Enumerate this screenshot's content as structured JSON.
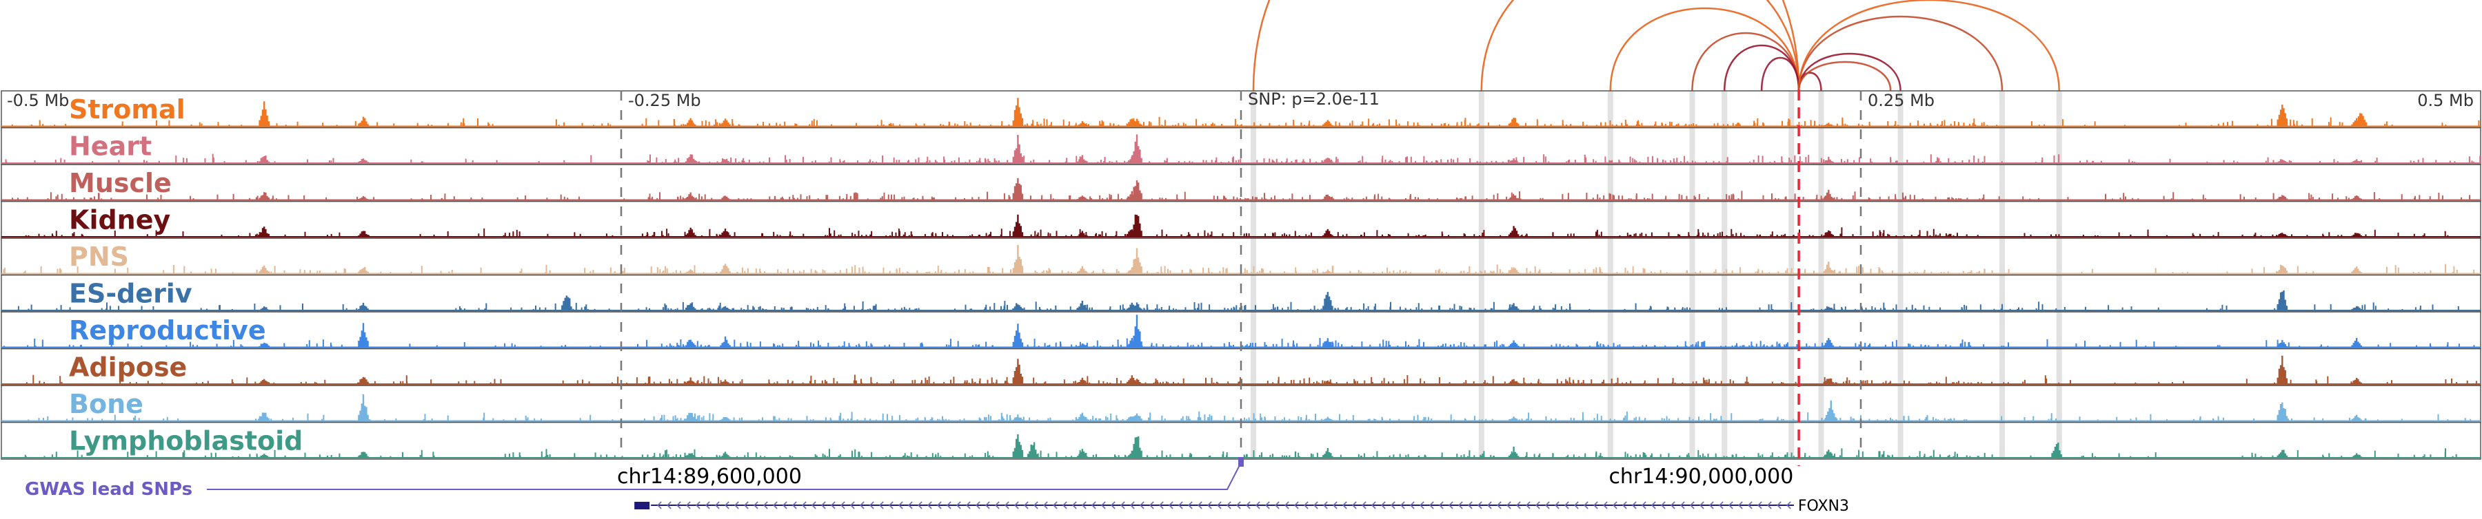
{
  "axis": {
    "ticks": [
      {
        "label": "-0.5 Mb",
        "pos": 0.0
      },
      {
        "label": "-0.25 Mb",
        "pos": 0.25
      },
      {
        "label": "0.25 Mb",
        "pos": 0.75
      },
      {
        "label": "0.5 Mb",
        "pos": 1.0
      }
    ],
    "snp_label": "SNP: p=2.0e-11",
    "snp_pos": 0.5
  },
  "tracks": [
    {
      "label": "Stromal",
      "color": "#f0761f"
    },
    {
      "label": "Heart",
      "color": "#d3707f"
    },
    {
      "label": "Muscle",
      "color": "#c0605d"
    },
    {
      "label": "Kidney",
      "color": "#6b0f12"
    },
    {
      "label": "PNS",
      "color": "#e3b894"
    },
    {
      "label": "ES-deriv",
      "color": "#3a72a8"
    },
    {
      "label": "Reproductive",
      "color": "#3d86e3"
    },
    {
      "label": "Adipose",
      "color": "#a9552f"
    },
    {
      "label": "Bone",
      "color": "#73b5e0"
    },
    {
      "label": "Lymphoblastoid",
      "color": "#3e9a87"
    }
  ],
  "gwas": {
    "label": "GWAS lead SNPs",
    "color": "#6b5bc2"
  },
  "coordinates": [
    {
      "label": "chr14:89,600,000",
      "pos": 0.24
    },
    {
      "label": "chr14:90,000,000",
      "pos": 0.64
    }
  ],
  "gene": {
    "name": "FOXN3",
    "start": 0.262,
    "end": 0.723,
    "color": "#1f1a7a"
  },
  "highlight_color": "#d8d8d8",
  "snp_line_color": "#e8273a",
  "arc_colors": [
    "#e8621b",
    "#c64a2b",
    "#9b1730"
  ]
}
